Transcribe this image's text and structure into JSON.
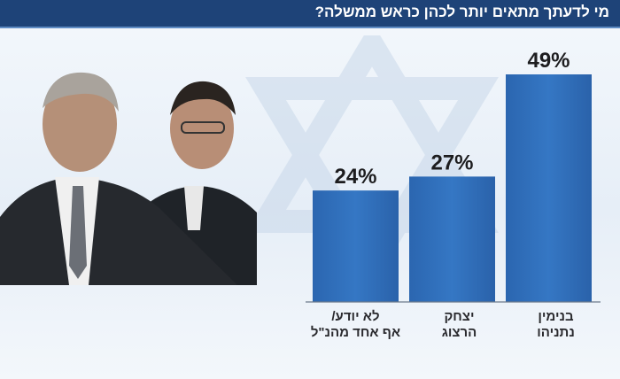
{
  "header": {
    "title": "מי לדעתך מתאים יותר לכהן כראש ממשלה?"
  },
  "colors": {
    "header_bg": "#1e4378",
    "bar": "#2e6cb8",
    "bar_dark": "#1f5aa3"
  },
  "chart_data": {
    "type": "bar",
    "title": "מי לדעתך מתאים יותר לכהן כראש ממשלה?",
    "categories": [
      "לא יודע/ אף אחד מהנ\"ל",
      "יצחק הרצוג",
      "בנימין נתניהו"
    ],
    "category_lines": [
      [
        "לא יודע/",
        "אף אחד מהנ\"ל"
      ],
      [
        "יצחק",
        "הרצוג"
      ],
      [
        "בנימין",
        "נתניהו"
      ]
    ],
    "values": [
      24,
      27,
      49
    ],
    "value_labels": [
      "24%",
      "27%",
      "49%"
    ],
    "unit": "%",
    "ylim": [
      0,
      49
    ],
    "grid": false,
    "legend": "none"
  }
}
